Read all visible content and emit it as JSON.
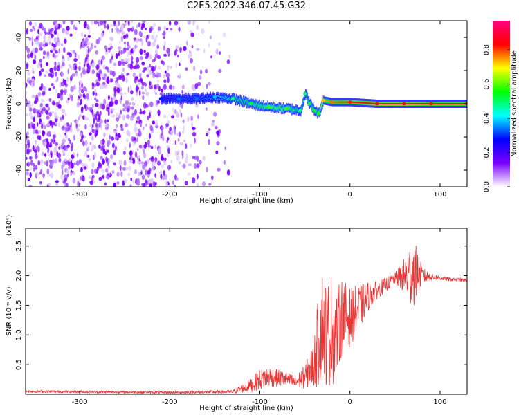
{
  "title": "C2E5.2022.346.07.45.G32",
  "chart_data": [
    {
      "type": "heatmap",
      "xlabel": "Height of straight line (km)",
      "ylabel": "Frequency (Hz)",
      "xlim": [
        -360,
        130
      ],
      "ylim": [
        -50,
        50
      ],
      "xticks": [
        -300,
        -200,
        -100,
        0,
        100
      ],
      "yticks": [
        -40,
        -20,
        0,
        20,
        40
      ],
      "ridge": {
        "description": "frequency of peak spectral amplitude vs height",
        "x": [
          -210,
          -190,
          -170,
          -150,
          -130,
          -110,
          -90,
          -70,
          -55,
          -50,
          -45,
          -40,
          -35,
          -30,
          -20,
          0,
          30,
          60,
          90,
          130
        ],
        "y": [
          3,
          3,
          3,
          4,
          3,
          0,
          -2,
          -3,
          -4,
          6,
          0,
          -4,
          -6,
          2,
          1,
          1,
          0,
          0,
          0,
          0
        ],
        "amplitude": [
          0.3,
          0.35,
          0.35,
          0.4,
          0.5,
          0.55,
          0.6,
          0.6,
          0.5,
          0.5,
          0.55,
          0.55,
          0.55,
          0.75,
          0.8,
          0.85,
          0.9,
          0.9,
          0.85,
          0.85
        ]
      },
      "noise_region": {
        "x_from": -360,
        "x_to": -130
      },
      "colorbar": {
        "label": "Normalized spectral amplitude",
        "ticks": [
          "0.0",
          "0.2",
          "0.4",
          "0.6",
          "0.8"
        ],
        "range": [
          0.0,
          0.97
        ],
        "colormap": [
          "#ffffff",
          "#7a00ff",
          "#0000ff",
          "#00ffff",
          "#00ff00",
          "#ffff00",
          "#ff0000",
          "#ff0080"
        ]
      }
    },
    {
      "type": "line",
      "xlabel": "Height of straight line (km)",
      "ylabel": "SNR (10 * v/v)",
      "yexponent": "(x10⁴)",
      "xlim": [
        -360,
        130
      ],
      "ylim": [
        0,
        2.8
      ],
      "xticks": [
        -300,
        -200,
        -100,
        0,
        100
      ],
      "yticks": [
        0.5,
        1.0,
        1.5,
        2.0,
        2.5
      ],
      "ytick_labels": [
        "0.5",
        "1.0",
        "1.5",
        "2.0",
        "2.5"
      ],
      "color": "#ee3333",
      "envelope": {
        "x": [
          -360,
          -300,
          -200,
          -130,
          -110,
          -100,
          -90,
          -70,
          -60,
          -50,
          -40,
          -35,
          -30,
          -25,
          -20,
          -15,
          -10,
          0,
          10,
          20,
          30,
          40,
          50,
          60,
          65,
          70,
          75,
          80,
          90,
          100,
          110,
          130
        ],
        "y": [
          0.05,
          0.04,
          0.03,
          0.04,
          0.15,
          0.25,
          0.3,
          0.25,
          0.2,
          0.3,
          0.5,
          0.9,
          1.2,
          1.0,
          1.1,
          1.0,
          1.3,
          1.3,
          1.45,
          1.65,
          1.75,
          1.85,
          1.95,
          2.0,
          2.0,
          2.05,
          2.05,
          2.0,
          1.98,
          1.96,
          1.94,
          1.92
        ],
        "amp": [
          0.02,
          0.02,
          0.02,
          0.03,
          0.12,
          0.18,
          0.18,
          0.12,
          0.12,
          0.2,
          0.4,
          0.8,
          1.0,
          0.9,
          1.0,
          0.7,
          0.7,
          0.5,
          0.4,
          0.25,
          0.15,
          0.12,
          0.1,
          0.3,
          0.5,
          0.6,
          0.4,
          0.15,
          0.06,
          0.04,
          0.03,
          0.03
        ]
      }
    }
  ]
}
